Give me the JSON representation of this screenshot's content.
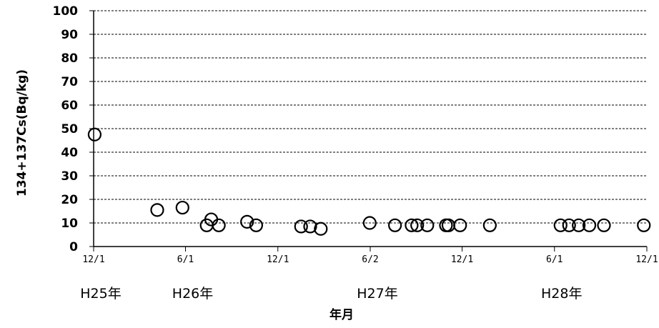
{
  "chart_data": {
    "type": "scatter",
    "title": "",
    "xlabel": "年月",
    "ylabel": "134+137Cs(Bq/kg)",
    "ylim": [
      0,
      100
    ],
    "yticks": [
      "0",
      "10",
      "20",
      "30",
      "40",
      "50",
      "60",
      "70",
      "80",
      "90",
      "100"
    ],
    "x_axis_type": "date",
    "xlim": [
      "2013-12-01",
      "2016-12-01"
    ],
    "x_tick_labels": [
      "12/1",
      "6/1",
      "12/1",
      "6/2",
      "12/1",
      "6/1",
      "12/1"
    ],
    "x_tick_dates": [
      "2013-12-01",
      "2014-06-01",
      "2014-12-01",
      "2015-06-02",
      "2015-12-01",
      "2016-06-01",
      "2016-12-01"
    ],
    "year_labels": [
      {
        "label": "H25年",
        "date": "2013-12-01"
      },
      {
        "label": "H26年",
        "date": "2014-06-01"
      },
      {
        "label": "H27年",
        "date": "2015-06-02"
      },
      {
        "label": "H28年",
        "date": "2016-06-01"
      }
    ],
    "grid": true,
    "grid_style": "dashed-horizontal",
    "marker": "open-circle",
    "series": [
      {
        "points": [
          {
            "x": "2013-12-03",
            "y": 47.5
          },
          {
            "x": "2014-04-06",
            "y": 15.5
          },
          {
            "x": "2014-05-26",
            "y": 16.5
          },
          {
            "x": "2014-07-13",
            "y": 9.0
          },
          {
            "x": "2014-07-22",
            "y": 11.5
          },
          {
            "x": "2014-08-06",
            "y": 9.0
          },
          {
            "x": "2014-10-01",
            "y": 10.5
          },
          {
            "x": "2014-10-19",
            "y": 9.0
          },
          {
            "x": "2015-01-16",
            "y": 8.5
          },
          {
            "x": "2015-02-03",
            "y": 8.5
          },
          {
            "x": "2015-02-24",
            "y": 7.5
          },
          {
            "x": "2015-06-01",
            "y": 10.0
          },
          {
            "x": "2015-07-21",
            "y": 9.0
          },
          {
            "x": "2015-08-23",
            "y": 9.0
          },
          {
            "x": "2015-09-03",
            "y": 9.0
          },
          {
            "x": "2015-09-23",
            "y": 9.0
          },
          {
            "x": "2015-10-30",
            "y": 9.0
          },
          {
            "x": "2015-11-04",
            "y": 9.0
          },
          {
            "x": "2015-11-27",
            "y": 9.0
          },
          {
            "x": "2016-01-25",
            "y": 9.0
          },
          {
            "x": "2016-06-13",
            "y": 9.0
          },
          {
            "x": "2016-06-30",
            "y": 9.0
          },
          {
            "x": "2016-07-19",
            "y": 9.0
          },
          {
            "x": "2016-08-09",
            "y": 9.0
          },
          {
            "x": "2016-09-07",
            "y": 9.0
          },
          {
            "x": "2016-11-25",
            "y": 9.0
          }
        ]
      }
    ]
  }
}
